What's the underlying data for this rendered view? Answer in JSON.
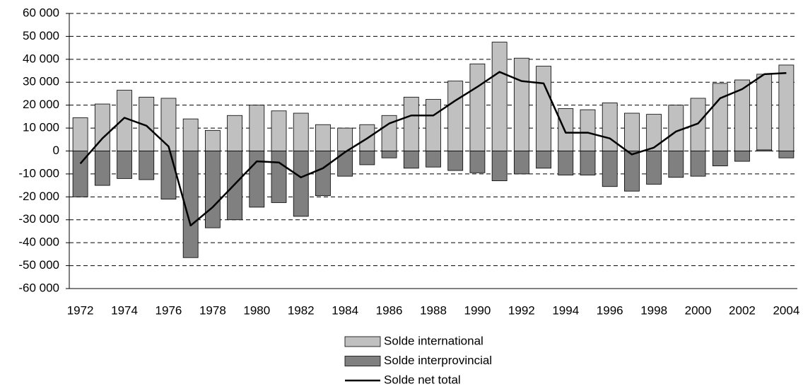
{
  "chart_data": {
    "type": "bar",
    "categories": [
      "1972",
      null,
      "1974",
      null,
      "1976",
      null,
      "1978",
      null,
      "1980",
      null,
      "1982",
      null,
      "1984",
      null,
      "1986",
      null,
      "1988",
      null,
      "1990",
      null,
      "1992",
      null,
      "1994",
      null,
      "1996",
      null,
      "1998",
      null,
      "2000",
      null,
      "2002",
      null,
      "2004"
    ],
    "series": [
      {
        "name": "Solde international",
        "type": "bar",
        "color": "#c0c0c0",
        "values": [
          14500,
          20500,
          26500,
          23500,
          23000,
          14000,
          9000,
          15500,
          20000,
          17500,
          16500,
          11500,
          10000,
          11500,
          15500,
          23500,
          22500,
          30500,
          38000,
          47500,
          40500,
          37000,
          18500,
          18000,
          21000,
          16500,
          16000,
          20000,
          23000,
          29500,
          31000,
          33500,
          37500
        ]
      },
      {
        "name": "Solde interprovincial",
        "type": "bar",
        "color": "#808080",
        "values": [
          -20000,
          -15000,
          -12000,
          -12500,
          -21000,
          -46500,
          -33500,
          -30000,
          -24500,
          -22500,
          -28500,
          -19500,
          -11000,
          -6000,
          -3000,
          -7500,
          -7000,
          -8500,
          -9500,
          -13000,
          -10000,
          -7500,
          -10500,
          -10500,
          -15500,
          -17500,
          -14500,
          -11500,
          -11000,
          -6500,
          -4500,
          500,
          -3000
        ]
      },
      {
        "name": "Solde net total",
        "type": "line",
        "color": "#000000",
        "values": [
          -5500,
          5500,
          14500,
          11000,
          2000,
          -32500,
          -24500,
          -14500,
          -4500,
          -5000,
          -11500,
          -7500,
          -500,
          5500,
          12000,
          15500,
          15500,
          22000,
          28000,
          34500,
          30500,
          29500,
          8000,
          8000,
          5500,
          -1500,
          1500,
          8500,
          12000,
          23000,
          27000,
          33500,
          34000
        ]
      }
    ],
    "ylim": [
      -60000,
      60000
    ],
    "yticks": [
      {
        "value": -60000,
        "label": "-60 000"
      },
      {
        "value": -50000,
        "label": "-50 000"
      },
      {
        "value": -40000,
        "label": "-40 000"
      },
      {
        "value": -30000,
        "label": "-30 000"
      },
      {
        "value": -20000,
        "label": "-20 000"
      },
      {
        "value": -10000,
        "label": "-10 000"
      },
      0,
      {
        "value": 10000,
        "label": "10 000"
      },
      {
        "value": 20000,
        "label": "20 000"
      },
      {
        "value": 30000,
        "label": "30 000"
      },
      {
        "value": 40000,
        "label": "40 000"
      },
      {
        "value": 50000,
        "label": "50 000"
      },
      {
        "value": 60000,
        "label": "60 000"
      }
    ],
    "grid": true,
    "legend": "bottom"
  }
}
